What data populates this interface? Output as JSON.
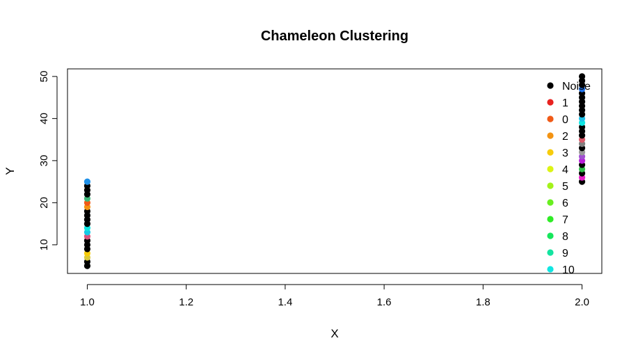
{
  "chart_data": {
    "type": "scatter",
    "title": "Chameleon Clustering",
    "xlabel": "X",
    "ylabel": "Y",
    "xlim": [
      0.96,
      2.04
    ],
    "ylim": [
      3.2,
      51.8
    ],
    "xticks": [
      1.0,
      1.2,
      1.4,
      1.6,
      1.8,
      2.0
    ],
    "xtick_labels": [
      "1.0",
      "1.2",
      "1.4",
      "1.6",
      "1.8",
      "2.0"
    ],
    "yticks": [
      10,
      20,
      30,
      40,
      50
    ],
    "ytick_labels": [
      "10",
      "20",
      "30",
      "40",
      "50"
    ],
    "grid": false,
    "legend_position": "top-right",
    "legend": [
      {
        "label": "Noise",
        "color": "#000000"
      },
      {
        "label": "1",
        "color": "#e8221f"
      },
      {
        "label": "0",
        "color": "#f05a17"
      },
      {
        "label": "2",
        "color": "#f39312"
      },
      {
        "label": "3",
        "color": "#f7cc0c"
      },
      {
        "label": "4",
        "color": "#dcf414"
      },
      {
        "label": "5",
        "color": "#a3f21a"
      },
      {
        "label": "6",
        "color": "#69ef20"
      },
      {
        "label": "7",
        "color": "#2fec26"
      },
      {
        "label": "8",
        "color": "#16e65b"
      },
      {
        "label": "9",
        "color": "#13e4a0"
      },
      {
        "label": "10",
        "color": "#10e6e2"
      }
    ],
    "points": [
      {
        "x": 1,
        "y": 5,
        "color": "#000000"
      },
      {
        "x": 1,
        "y": 6,
        "color": "#000000"
      },
      {
        "x": 1,
        "y": 7,
        "color": "#d8c93a"
      },
      {
        "x": 1,
        "y": 8,
        "color": "#f7cc0c"
      },
      {
        "x": 1,
        "y": 9,
        "color": "#000000"
      },
      {
        "x": 1,
        "y": 10,
        "color": "#000000"
      },
      {
        "x": 1,
        "y": 11,
        "color": "#000000"
      },
      {
        "x": 1,
        "y": 12,
        "color": "#d9517b"
      },
      {
        "x": 1,
        "y": 13,
        "color": "#16c8e6"
      },
      {
        "x": 1,
        "y": 14,
        "color": "#10e6e2"
      },
      {
        "x": 1,
        "y": 15,
        "color": "#000000"
      },
      {
        "x": 1,
        "y": 16,
        "color": "#000000"
      },
      {
        "x": 1,
        "y": 17,
        "color": "#000000"
      },
      {
        "x": 1,
        "y": 18,
        "color": "#000000"
      },
      {
        "x": 1,
        "y": 19,
        "color": "#f39312"
      },
      {
        "x": 1,
        "y": 20,
        "color": "#f05a17"
      },
      {
        "x": 1,
        "y": 21,
        "color": "#3fb87a"
      },
      {
        "x": 1,
        "y": 22,
        "color": "#000000"
      },
      {
        "x": 1,
        "y": 23,
        "color": "#000000"
      },
      {
        "x": 1,
        "y": 24,
        "color": "#000000"
      },
      {
        "x": 1,
        "y": 25,
        "color": "#1e90e8"
      },
      {
        "x": 2,
        "y": 25,
        "color": "#000000"
      },
      {
        "x": 2,
        "y": 26,
        "color": "#e81fc8"
      },
      {
        "x": 2,
        "y": 27,
        "color": "#000000"
      },
      {
        "x": 2,
        "y": 28,
        "color": "#2fbf4a"
      },
      {
        "x": 2,
        "y": 29,
        "color": "#000000"
      },
      {
        "x": 2,
        "y": 30,
        "color": "#b81fd8"
      },
      {
        "x": 2,
        "y": 31,
        "color": "#a050d0"
      },
      {
        "x": 2,
        "y": 32,
        "color": "#9a9a9a"
      },
      {
        "x": 2,
        "y": 33,
        "color": "#000000"
      },
      {
        "x": 2,
        "y": 34,
        "color": "#808080"
      },
      {
        "x": 2,
        "y": 35,
        "color": "#d95a6a"
      },
      {
        "x": 2,
        "y": 36,
        "color": "#000000"
      },
      {
        "x": 2,
        "y": 37,
        "color": "#000000"
      },
      {
        "x": 2,
        "y": 38,
        "color": "#000000"
      },
      {
        "x": 2,
        "y": 39,
        "color": "#10e6e2"
      },
      {
        "x": 2,
        "y": 40,
        "color": "#1ec0e8"
      },
      {
        "x": 2,
        "y": 41,
        "color": "#000000"
      },
      {
        "x": 2,
        "y": 42,
        "color": "#000000"
      },
      {
        "x": 2,
        "y": 43,
        "color": "#000000"
      },
      {
        "x": 2,
        "y": 44,
        "color": "#000000"
      },
      {
        "x": 2,
        "y": 45,
        "color": "#000000"
      },
      {
        "x": 2,
        "y": 46,
        "color": "#000000"
      },
      {
        "x": 2,
        "y": 47,
        "color": "#1e70e8"
      },
      {
        "x": 2,
        "y": 48,
        "color": "#000000"
      },
      {
        "x": 2,
        "y": 49,
        "color": "#000000"
      },
      {
        "x": 2,
        "y": 50,
        "color": "#000000"
      }
    ]
  }
}
